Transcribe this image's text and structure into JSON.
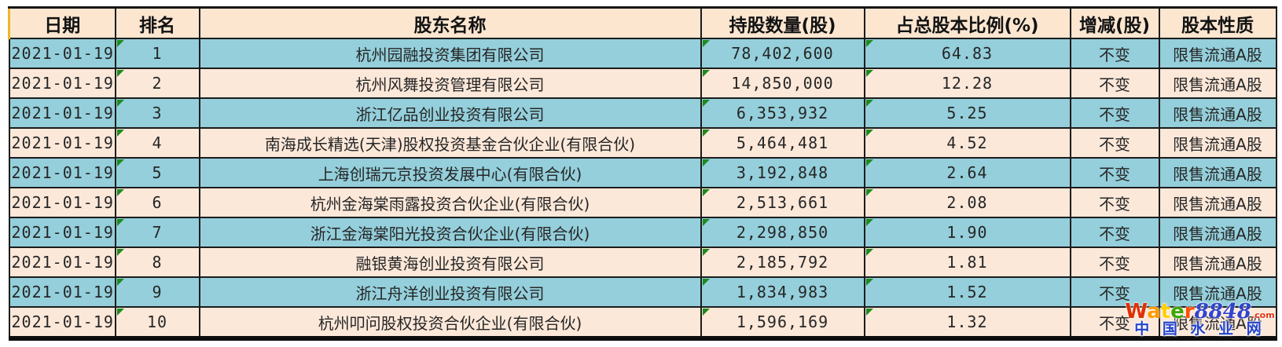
{
  "table": {
    "headers": [
      "日期",
      "排名",
      "股东名称",
      "持股数量(股)",
      "占总股本比例(%)",
      "增减(股)",
      "股本性质"
    ],
    "rows": [
      {
        "date": "2021-01-19",
        "rank": "1",
        "name": "杭州园融投资集团有限公司",
        "shares": "78,402,600",
        "percent": "64.83",
        "change": "不变",
        "nature": "限售流通A股"
      },
      {
        "date": "2021-01-19",
        "rank": "2",
        "name": "杭州风舞投资管理有限公司",
        "shares": "14,850,000",
        "percent": "12.28",
        "change": "不变",
        "nature": "限售流通A股"
      },
      {
        "date": "2021-01-19",
        "rank": "3",
        "name": "浙江亿品创业投资有限公司",
        "shares": "6,353,932",
        "percent": "5.25",
        "change": "不变",
        "nature": "限售流通A股"
      },
      {
        "date": "2021-01-19",
        "rank": "4",
        "name": "南海成长精选(天津)股权投资基金合伙企业(有限合伙)",
        "shares": "5,464,481",
        "percent": "4.52",
        "change": "不变",
        "nature": "限售流通A股"
      },
      {
        "date": "2021-01-19",
        "rank": "5",
        "name": "上海创瑞元京投资发展中心(有限合伙)",
        "shares": "3,192,848",
        "percent": "2.64",
        "change": "不变",
        "nature": "限售流通A股"
      },
      {
        "date": "2021-01-19",
        "rank": "6",
        "name": "杭州金海棠雨露投资合伙企业(有限合伙)",
        "shares": "2,513,661",
        "percent": "2.08",
        "change": "不变",
        "nature": "限售流通A股"
      },
      {
        "date": "2021-01-19",
        "rank": "7",
        "name": "浙江金海棠阳光投资合伙企业(有限合伙)",
        "shares": "2,298,850",
        "percent": "1.90",
        "change": "不变",
        "nature": "限售流通A股"
      },
      {
        "date": "2021-01-19",
        "rank": "8",
        "name": "融银黄海创业投资有限公司",
        "shares": "2,185,792",
        "percent": "1.81",
        "change": "不变",
        "nature": "限售流通A股"
      },
      {
        "date": "2021-01-19",
        "rank": "9",
        "name": "浙江舟洋创业投资有限公司",
        "shares": "1,834,983",
        "percent": "1.52",
        "change": "不变",
        "nature": "限售流通A股"
      },
      {
        "date": "2021-01-19",
        "rank": "10",
        "name": "杭州叩问股权投资合伙企业(有限合伙)",
        "shares": "1,596,169",
        "percent": "1.32",
        "change": "不变",
        "nature": "限售流通A股"
      }
    ]
  },
  "watermark": {
    "brand_letters": [
      {
        "ch": "W",
        "color": "#e03000",
        "italic": false
      },
      {
        "ch": "a",
        "color": "#ff9b00",
        "italic": false
      },
      {
        "ch": "t",
        "color": "#ffd100",
        "italic": false
      },
      {
        "ch": "e",
        "color": "#3da800",
        "italic": false
      },
      {
        "ch": "r",
        "color": "#ff4f00",
        "italic": false
      },
      {
        "ch": "8",
        "color": "#3344cc",
        "italic": true
      },
      {
        "ch": "8",
        "color": "#3344cc",
        "italic": true
      },
      {
        "ch": "4",
        "color": "#3344cc",
        "italic": true
      },
      {
        "ch": "8",
        "color": "#3344cc",
        "italic": true
      }
    ],
    "suffix": ".com",
    "site_name": "中 国 水 业 网"
  },
  "colors": {
    "row_teal": "#94cfdb",
    "row_peach": "#fce8d9",
    "header_bg": "#fce6d0",
    "header_left_accent": "#edb62f",
    "border": "#1c1c1c",
    "corner_flag_green": "#1e8a1e",
    "watermark_blue": "#2443cc",
    "watermark_com_red": "#e63311"
  }
}
